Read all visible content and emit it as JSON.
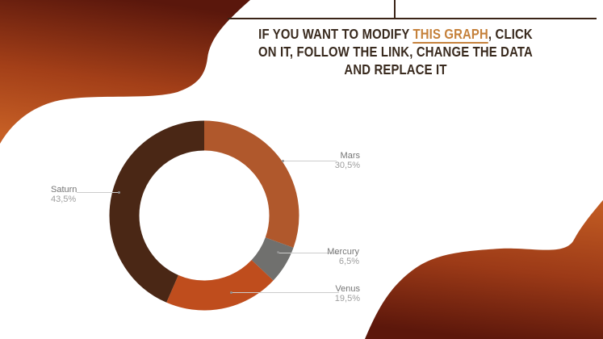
{
  "slide": {
    "title": {
      "line1_pre": "IF YOU WANT TO MODIFY ",
      "link_text": "THIS GRAPH",
      "line1_post": ", CLICK",
      "line2": "ON IT, FOLLOW THE LINK, CHANGE THE DATA",
      "line3": "AND REPLACE IT",
      "text_color": "#392a1e",
      "link_color": "#c5813b"
    },
    "accent_line_color": "#3a2417",
    "background": {
      "top_left_blob": {
        "top": "#5a170c",
        "mid": "#a33f18",
        "bottom": "#c65f25"
      },
      "bottom_right_blob": {
        "top": "#c05a22",
        "mid": "#9c3a17",
        "bottom": "#5c170b"
      }
    }
  },
  "chart_data": {
    "type": "pie",
    "subtype": "donut",
    "title": "",
    "categories": [
      "Mars",
      "Mercury",
      "Venus",
      "Saturn"
    ],
    "values": [
      30.5,
      6.5,
      19.5,
      43.5
    ],
    "unit": "%",
    "donut_hole_ratio": 0.69,
    "start_angle_deg": 0,
    "direction": "clockwise",
    "legend_position": "outside-callouts",
    "label_color": "#757575",
    "value_color": "#9e9e9e",
    "slices": [
      {
        "label": "Mars",
        "pct": "30,5%",
        "value": 30.5,
        "color": "#b0582c"
      },
      {
        "label": "Mercury",
        "pct": "6,5%",
        "value": 6.5,
        "color": "#70706e"
      },
      {
        "label": "Venus",
        "pct": "19,5%",
        "value": 19.5,
        "color": "#bf4d1d"
      },
      {
        "label": "Saturn",
        "pct": "43,5%",
        "value": 43.5,
        "color": "#4a2715"
      }
    ]
  }
}
